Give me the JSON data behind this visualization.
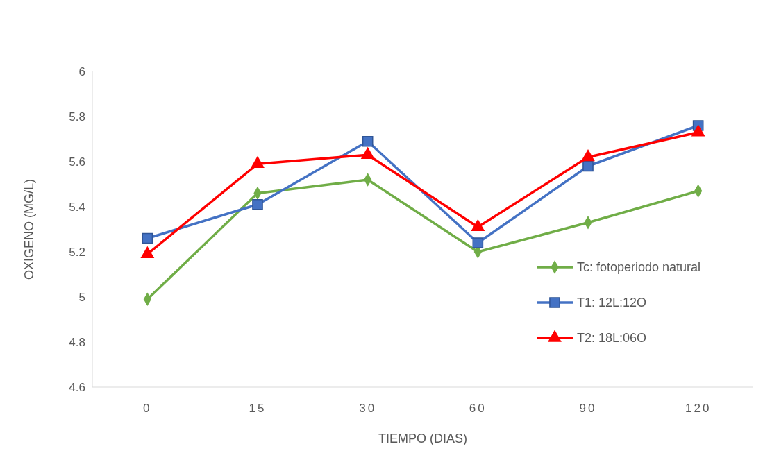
{
  "chart_data": {
    "type": "line",
    "xlabel": "TIEMPO (DIAS)",
    "ylabel": "OXIGENO (MG/L)",
    "categories": [
      "0",
      "15",
      "30",
      "60",
      "90",
      "120"
    ],
    "ylim": [
      4.6,
      6
    ],
    "yticks": [
      4.6,
      4.8,
      5,
      5.2,
      5.4,
      5.6,
      5.8,
      6
    ],
    "grid": false,
    "legend": "right",
    "series": [
      {
        "name": "Tc: fotoperiodo natural",
        "color": "#70ad47",
        "marker": "diamond",
        "values": [
          4.99,
          5.46,
          5.52,
          5.2,
          5.33,
          5.47
        ]
      },
      {
        "name": "T1: 12L:12O",
        "color": "#4472c4",
        "marker": "square",
        "values": [
          5.26,
          5.41,
          5.69,
          5.24,
          5.58,
          5.76
        ]
      },
      {
        "name": "T2: 18L:06O",
        "color": "#ff0000",
        "marker": "triangle",
        "values": [
          5.19,
          5.59,
          5.63,
          5.31,
          5.62,
          5.73
        ]
      }
    ]
  }
}
